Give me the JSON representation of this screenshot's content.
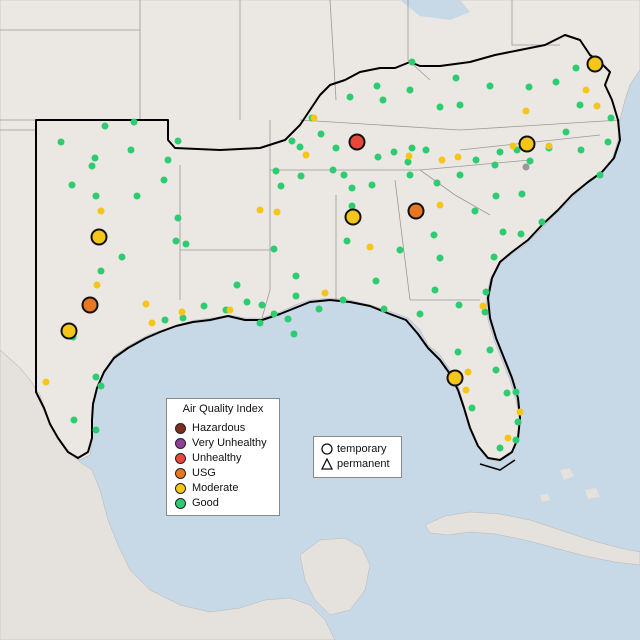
{
  "legend": {
    "title": "Air Quality Index",
    "items": [
      {
        "label": "Hazardous",
        "color": "#7e2d20"
      },
      {
        "label": "Very Unhealthy",
        "color": "#8f3f97"
      },
      {
        "label": "Unhealthy",
        "color": "#e8473b"
      },
      {
        "label": "USG",
        "color": "#e87722"
      },
      {
        "label": "Moderate",
        "color": "#f5c518"
      },
      {
        "label": "Good",
        "color": "#2ecc71"
      }
    ]
  },
  "monitor_type_legend": {
    "items": [
      {
        "label": "temporary",
        "icon": "circle-icon"
      },
      {
        "label": "permanent",
        "icon": "triangle-icon"
      }
    ]
  },
  "colors": {
    "ocean": "#c7d8e6",
    "land": "#ebe7e3",
    "region_outline": "#000000",
    "state_border": "#9a9a9a"
  }
}
